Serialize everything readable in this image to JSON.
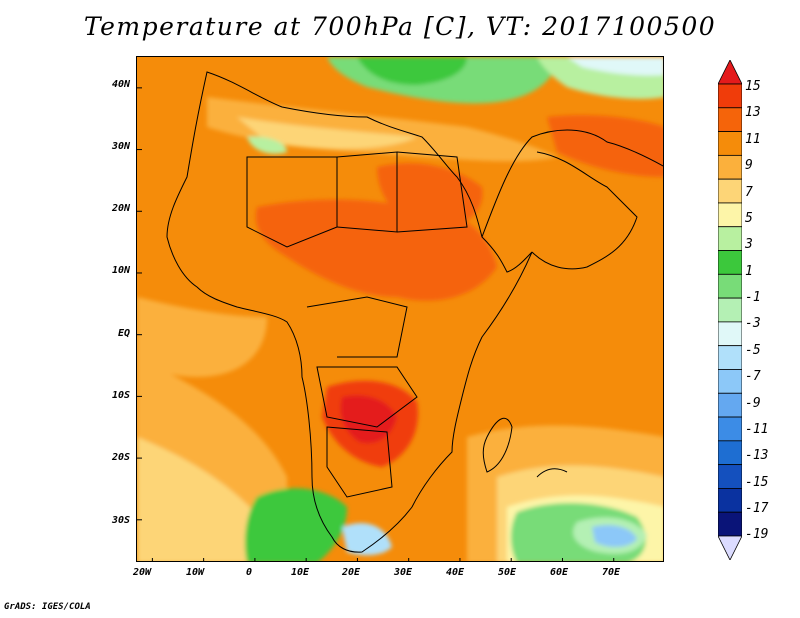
{
  "title": "Temperature at 700hPa [C], VT: 2017100500",
  "credit": "GrADS: IGES/COLA",
  "map": {
    "lon_range": [
      -23,
      80
    ],
    "lat_range": [
      -37,
      45
    ],
    "lon_ticks": [
      "20W",
      "10W",
      "0",
      "10E",
      "20E",
      "30E",
      "40E",
      "50E",
      "60E",
      "70E"
    ],
    "lat_ticks": [
      "40N",
      "30N",
      "20N",
      "10N",
      "EQ",
      "10S",
      "20S",
      "30S"
    ],
    "field": "Temperature at 700hPa",
    "units": "C"
  },
  "colorbar": {
    "labels": [
      "15",
      "13",
      "11",
      "9",
      "7",
      "5",
      "3",
      "1",
      "-1",
      "-3",
      "-5",
      "-7",
      "-9",
      "-11",
      "-13",
      "-15",
      "-17",
      "-19"
    ],
    "colors": [
      "#e41a1c",
      "#f03c0a",
      "#f5640a",
      "#f58c0a",
      "#fbb03c",
      "#fdd577",
      "#fdf5a8",
      "#b8f0a0",
      "#3cc83c",
      "#78dc78",
      "#b4f0b4",
      "#e0f8f8",
      "#b0e0fa",
      "#8cc8f8",
      "#64a8f0",
      "#3c8ce6",
      "#1e6ed2",
      "#1450be",
      "#0a32a0",
      "#0a1478",
      "#dcdcff"
    ]
  },
  "chart_data": {
    "type": "heatmap",
    "title": "Temperature at 700hPa [C], VT: 2017100500",
    "x_ticks": [
      "20W",
      "10W",
      "0",
      "10E",
      "20E",
      "30E",
      "40E",
      "50E",
      "60E",
      "70E"
    ],
    "y_ticks": [
      "40N",
      "30N",
      "20N",
      "10N",
      "EQ",
      "10S",
      "20S",
      "30S"
    ],
    "colorbar_range": [
      -19,
      15
    ]
  }
}
